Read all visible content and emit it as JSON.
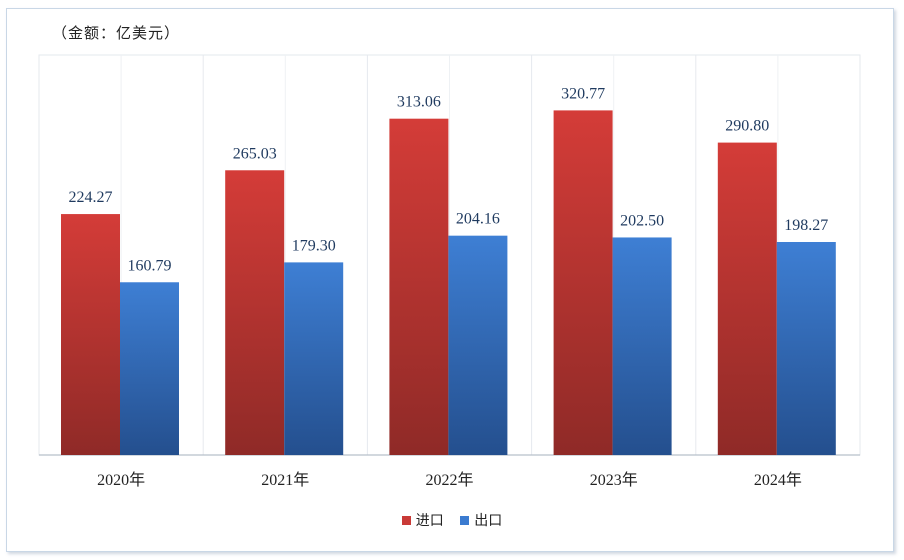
{
  "unit_note": "（金额：亿美元）",
  "chart_data": {
    "type": "bar",
    "categories": [
      "2020年",
      "2021年",
      "2022年",
      "2023年",
      "2024年"
    ],
    "series": [
      {
        "name": "进口",
        "values": [
          224.27,
          265.03,
          313.06,
          320.77,
          290.8
        ],
        "labels": [
          "224.27",
          "265.03",
          "313.06",
          "320.77",
          "290.80"
        ],
        "color": "#c93a37"
      },
      {
        "name": "出口",
        "values": [
          160.79,
          179.3,
          204.16,
          202.5,
          198.27
        ],
        "labels": [
          "160.79",
          "179.30",
          "204.16",
          "202.50",
          "198.27"
        ],
        "color": "#3b7bd0"
      }
    ],
    "ylim": [
      0,
      350
    ],
    "grid": false,
    "legend_position": "bottom"
  }
}
